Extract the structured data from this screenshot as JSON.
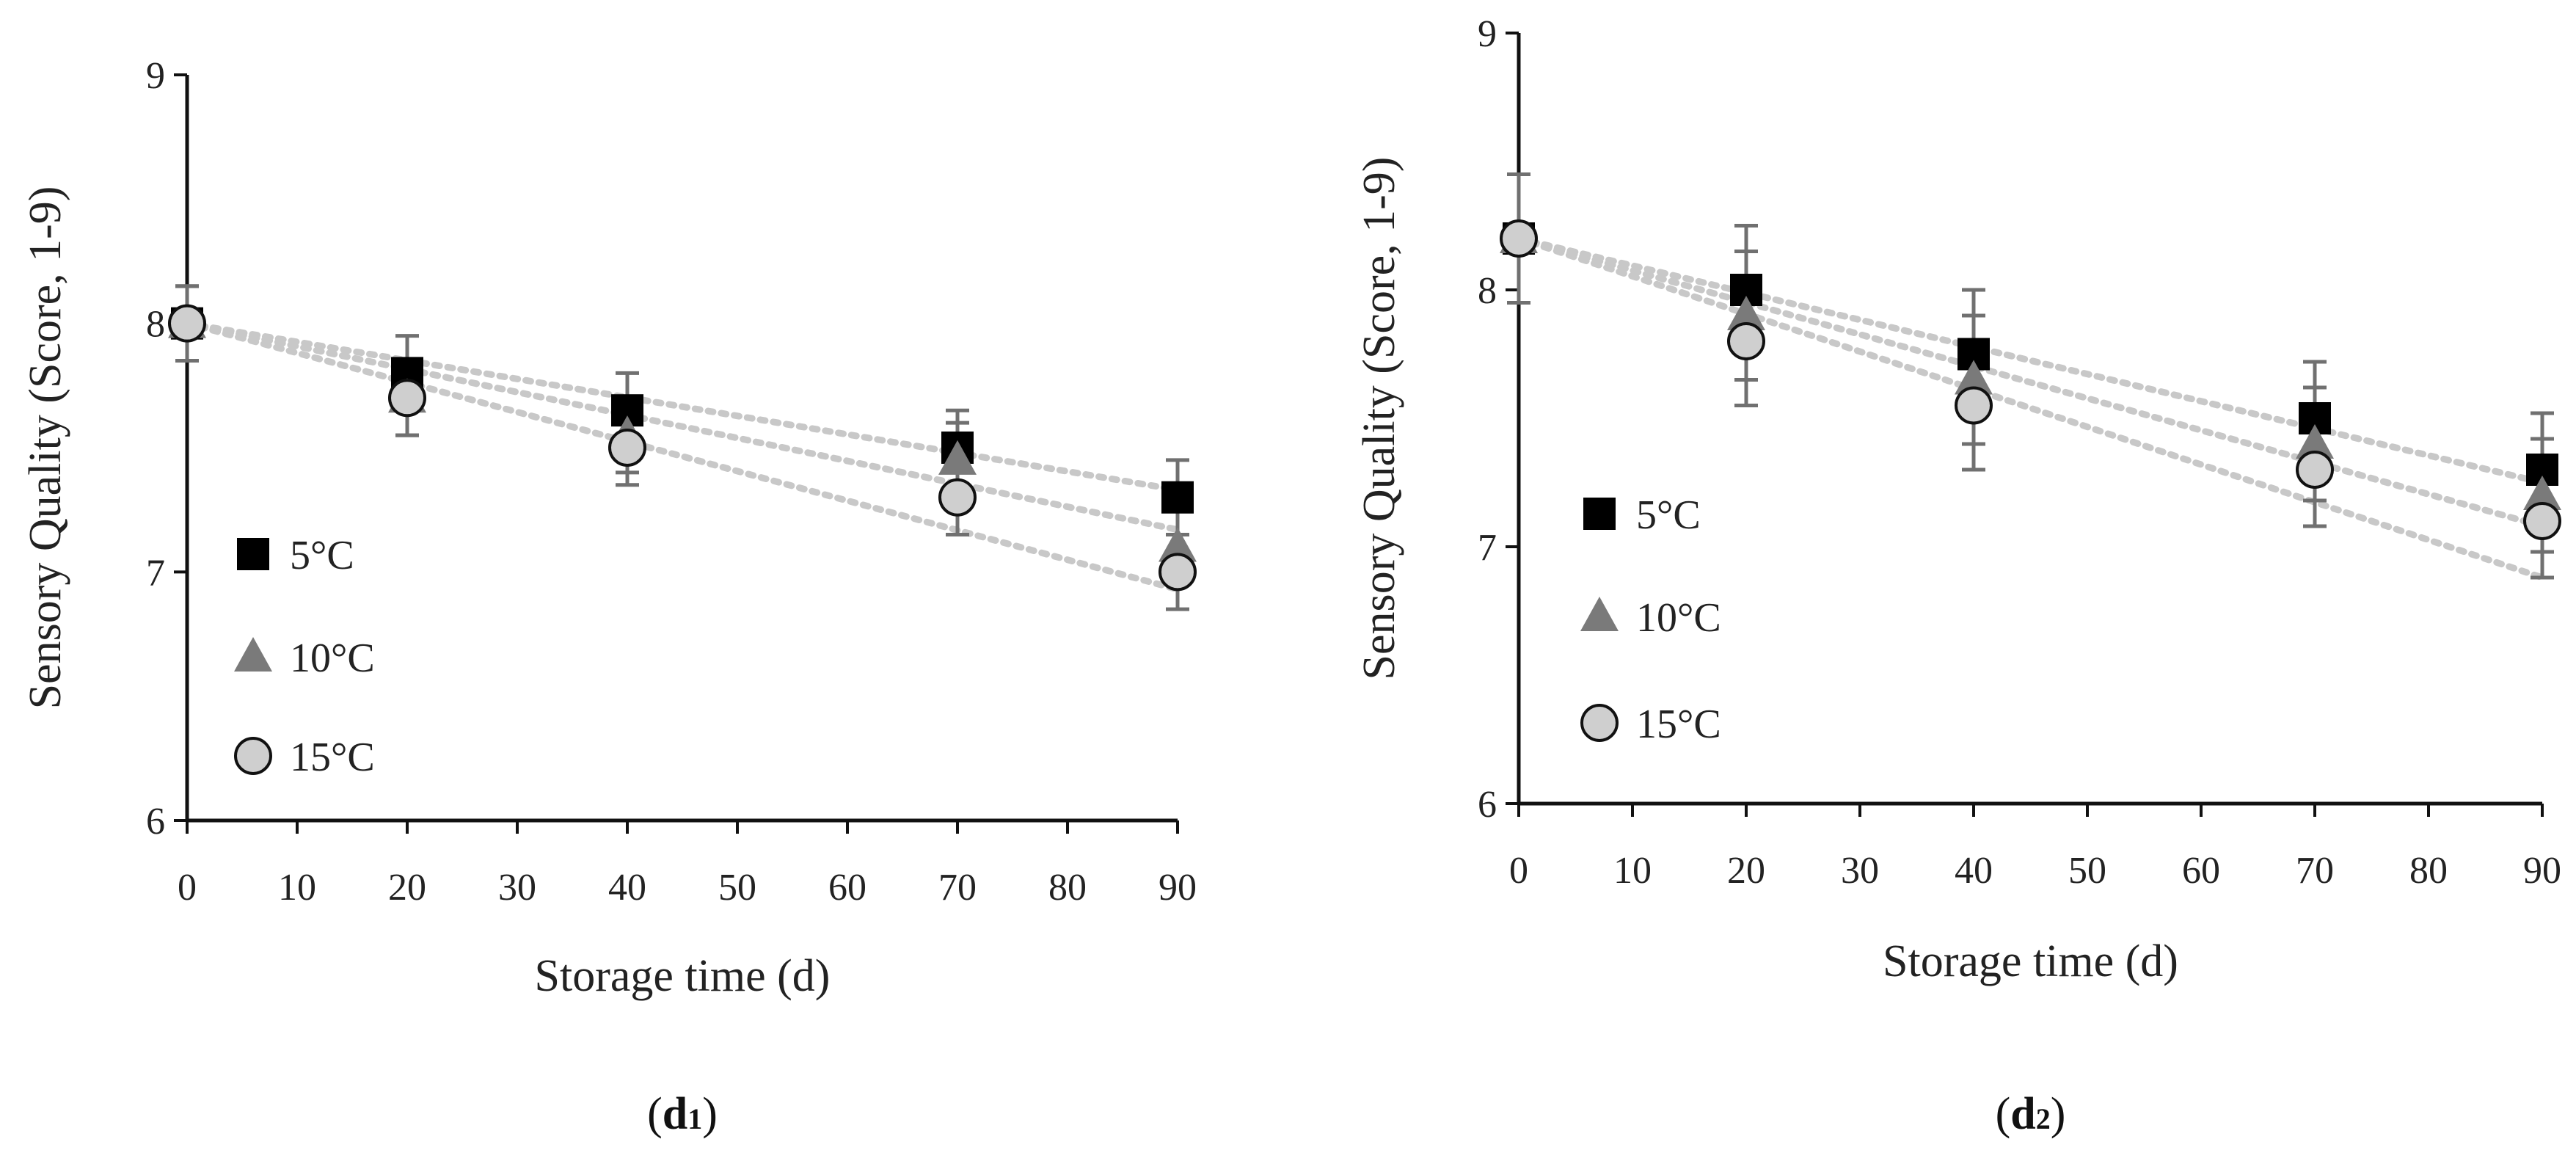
{
  "chart_data": [
    {
      "type": "scatter",
      "panel_label": "d",
      "panel_sub": "1",
      "xlabel": "Storage time (d)",
      "ylabel": "Sensory Quality (Score, 1-9)",
      "xlim": [
        0,
        90
      ],
      "ylim": [
        6,
        9
      ],
      "xticks": [
        "0",
        "10",
        "20",
        "30",
        "40",
        "50",
        "60",
        "70",
        "80",
        "90"
      ],
      "yticks": [
        "6",
        "7",
        "8",
        "9"
      ],
      "legend_position": "lower-left",
      "x": [
        0,
        20,
        40,
        70,
        90
      ],
      "series": [
        {
          "name": "5°C",
          "marker": "square",
          "color": "#000000",
          "values": [
            8.0,
            7.8,
            7.65,
            7.5,
            7.3
          ],
          "errors": [
            0.15,
            0.15,
            0.15,
            0.15,
            0.15
          ],
          "trend": [
            8.0,
            7.33
          ]
        },
        {
          "name": "10°C",
          "marker": "triangle",
          "color": "#7a7a7a",
          "values": [
            8.0,
            7.7,
            7.55,
            7.45,
            7.1
          ],
          "errors": [
            0.15,
            0.15,
            0.15,
            0.15,
            0.15
          ],
          "trend": [
            8.0,
            7.17
          ]
        },
        {
          "name": "15°C",
          "marker": "circle",
          "color": "#cfcfcf",
          "values": [
            8.0,
            7.7,
            7.5,
            7.3,
            7.0
          ],
          "errors": [
            0.15,
            0.15,
            0.15,
            0.15,
            0.15
          ],
          "trend": [
            8.0,
            6.93
          ]
        }
      ]
    },
    {
      "type": "scatter",
      "panel_label": "d",
      "panel_sub": "2",
      "xlabel": "Storage time (d)",
      "ylabel": "Sensory Quality (Score, 1-9)",
      "xlim": [
        0,
        90
      ],
      "ylim": [
        6,
        9
      ],
      "xticks": [
        "0",
        "10",
        "20",
        "30",
        "40",
        "50",
        "60",
        "70",
        "80",
        "90"
      ],
      "yticks": [
        "6",
        "7",
        "8",
        "9"
      ],
      "legend_position": "lower-left",
      "x": [
        0,
        20,
        40,
        70,
        90
      ],
      "series": [
        {
          "name": "5°C",
          "marker": "square",
          "color": "#000000",
          "values": [
            8.2,
            8.0,
            7.75,
            7.5,
            7.3
          ],
          "errors": [
            0.25,
            0.25,
            0.25,
            0.22,
            0.22
          ],
          "trend": [
            8.2,
            7.25
          ]
        },
        {
          "name": "10°C",
          "marker": "triangle",
          "color": "#7a7a7a",
          "values": [
            8.2,
            7.9,
            7.65,
            7.4,
            7.2
          ],
          "errors": [
            0.25,
            0.25,
            0.25,
            0.22,
            0.22
          ],
          "trend": [
            8.2,
            7.08
          ]
        },
        {
          "name": "15°C",
          "marker": "circle",
          "color": "#cfcfcf",
          "values": [
            8.2,
            7.8,
            7.55,
            7.3,
            7.1
          ],
          "errors": [
            0.25,
            0.25,
            0.25,
            0.22,
            0.22
          ],
          "trend": [
            8.2,
            6.88
          ]
        }
      ]
    }
  ]
}
